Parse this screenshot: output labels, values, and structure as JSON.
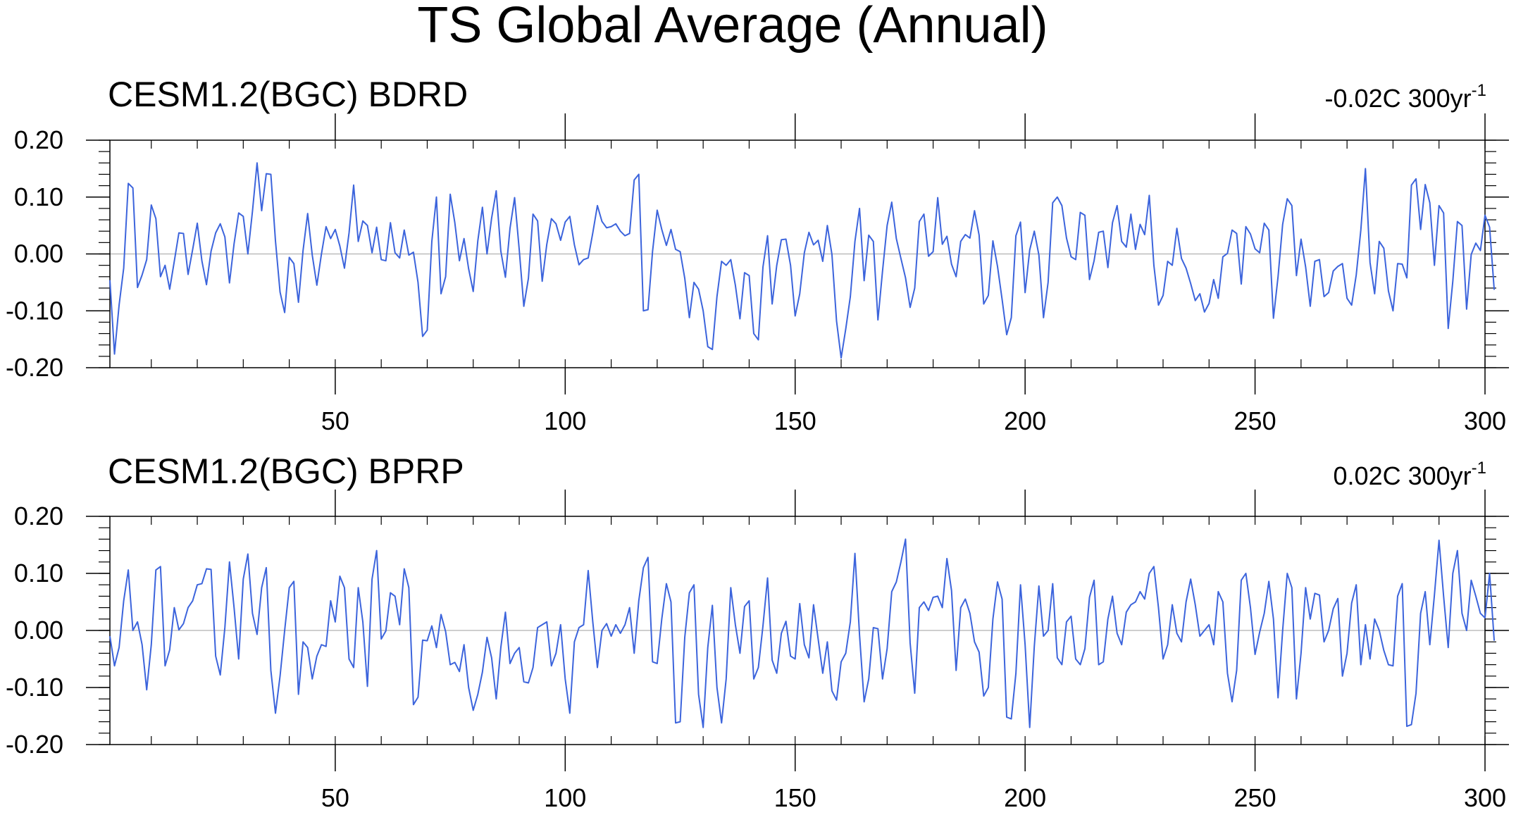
{
  "figure": {
    "title": "TS Global Average (Annual)"
  },
  "chart_data": [
    {
      "type": "line",
      "title": "CESM1.2(BGC) BDRD",
      "trend_label": "-0.02C 300yr",
      "trend_superscript": "-1",
      "xlabel": "",
      "ylabel": "",
      "xlim": [
        1,
        300
      ],
      "ylim": [
        -0.2,
        0.2
      ],
      "xticks": [
        50,
        100,
        150,
        200,
        250,
        300
      ],
      "yticks": [
        0.2,
        0.1,
        0.0,
        -0.1,
        -0.2
      ],
      "ytick_labels": [
        "0.20",
        "0.10",
        "0.00",
        "-0.10",
        "-0.20"
      ],
      "zero_line": true,
      "line_color": "#3c64dc",
      "series": [
        {
          "x_start": 1,
          "x_step": 1,
          "values": [
            -0.046,
            -0.176,
            -0.09,
            -0.025,
            0.124,
            0.116,
            -0.059,
            -0.037,
            -0.01,
            0.086,
            0.062,
            -0.04,
            -0.02,
            -0.062,
            -0.013,
            0.037,
            0.036,
            -0.036,
            0.008,
            0.054,
            -0.012,
            -0.054,
            0.005,
            0.037,
            0.053,
            0.03,
            -0.051,
            0.018,
            0.072,
            0.066,
            0.0,
            0.075,
            0.16,
            0.076,
            0.141,
            0.14,
            0.023,
            -0.067,
            -0.103,
            -0.006,
            -0.017,
            -0.085,
            0.006,
            0.071,
            -0.002,
            -0.055,
            0.0,
            0.048,
            0.027,
            0.043,
            0.014,
            -0.025,
            0.037,
            0.121,
            0.022,
            0.058,
            0.05,
            0.002,
            0.047,
            -0.01,
            -0.012,
            0.055,
            0.002,
            -0.007,
            0.042,
            -0.002,
            0.003,
            -0.05,
            -0.145,
            -0.134,
            0.022,
            0.1,
            -0.07,
            -0.04,
            0.105,
            0.055,
            -0.012,
            0.027,
            -0.026,
            -0.066,
            0.023,
            0.082,
            0.0,
            0.063,
            0.111,
            0.005,
            -0.041,
            0.045,
            0.099,
            0.008,
            -0.092,
            -0.043,
            0.07,
            0.058,
            -0.048,
            0.017,
            0.062,
            0.053,
            0.024,
            0.056,
            0.066,
            0.016,
            -0.019,
            -0.01,
            -0.007,
            0.037,
            0.085,
            0.057,
            0.046,
            0.048,
            0.053,
            0.04,
            0.032,
            0.036,
            0.13,
            0.14,
            -0.1,
            -0.098,
            0.005,
            0.077,
            0.043,
            0.015,
            0.043,
            0.008,
            0.004,
            -0.043,
            -0.112,
            -0.05,
            -0.062,
            -0.1,
            -0.163,
            -0.168,
            -0.075,
            -0.013,
            -0.02,
            -0.01,
            -0.055,
            -0.114,
            -0.033,
            -0.038,
            -0.14,
            -0.151,
            -0.023,
            0.032,
            -0.088,
            -0.02,
            0.025,
            0.026,
            -0.02,
            -0.109,
            -0.07,
            0.002,
            0.038,
            0.016,
            0.024,
            -0.013,
            0.05,
            -0.001,
            -0.118,
            -0.183,
            -0.132,
            -0.075,
            0.022,
            0.08,
            -0.047,
            0.033,
            0.022,
            -0.116,
            -0.03,
            0.05,
            0.091,
            0.027,
            -0.008,
            -0.042,
            -0.094,
            -0.06,
            0.057,
            0.07,
            -0.004,
            0.004,
            0.099,
            0.017,
            0.031,
            -0.018,
            -0.04,
            0.022,
            0.034,
            0.028,
            0.076,
            0.033,
            -0.088,
            -0.073,
            0.023,
            -0.022,
            -0.08,
            -0.142,
            -0.112,
            0.032,
            0.056,
            -0.068,
            0.007,
            0.04,
            -0.002,
            -0.112,
            -0.05,
            0.09,
            0.1,
            0.085,
            0.028,
            -0.005,
            -0.01,
            0.073,
            0.068,
            -0.045,
            -0.012,
            0.038,
            0.04,
            -0.024,
            0.055,
            0.085,
            0.022,
            0.012,
            0.07,
            0.008,
            0.052,
            0.034,
            0.103,
            -0.02,
            -0.09,
            -0.073,
            -0.013,
            -0.02,
            0.045,
            -0.008,
            -0.025,
            -0.052,
            -0.082,
            -0.07,
            -0.102,
            -0.087,
            -0.045,
            -0.078,
            -0.005,
            0.001,
            0.042,
            0.036,
            -0.053,
            0.048,
            0.035,
            0.009,
            0.002,
            0.054,
            0.042,
            -0.113,
            -0.04,
            0.052,
            0.097,
            0.085,
            -0.038,
            0.026,
            -0.023,
            -0.092,
            -0.013,
            -0.01,
            -0.075,
            -0.068,
            -0.03,
            -0.022,
            -0.017,
            -0.078,
            -0.09,
            -0.037,
            0.042,
            0.15,
            -0.015,
            -0.07,
            0.022,
            0.01,
            -0.065,
            -0.1,
            -0.017,
            -0.018,
            -0.042,
            0.121,
            0.132,
            0.043,
            0.122,
            0.09,
            -0.02,
            0.085,
            0.072,
            -0.131,
            -0.048,
            0.057,
            0.05,
            -0.097,
            -0.001,
            0.019,
            0.006,
            0.068,
            0.047,
            -0.063
          ]
        }
      ]
    },
    {
      "type": "line",
      "title": "CESM1.2(BGC) BPRP",
      "trend_label": "0.02C 300yr",
      "trend_superscript": "-1",
      "xlabel": "",
      "ylabel": "",
      "xlim": [
        1,
        300
      ],
      "ylim": [
        -0.2,
        0.2
      ],
      "xticks": [
        50,
        100,
        150,
        200,
        250,
        300
      ],
      "yticks": [
        0.2,
        0.1,
        0.0,
        -0.1,
        -0.2
      ],
      "ytick_labels": [
        "0.20",
        "0.10",
        "0.00",
        "-0.10",
        "-0.20"
      ],
      "zero_line": true,
      "line_color": "#3c64dc",
      "series": [
        {
          "x_start": 1,
          "x_step": 1,
          "values": [
            -0.01,
            -0.062,
            -0.03,
            0.052,
            0.106,
            0.0,
            0.015,
            -0.025,
            -0.104,
            -0.025,
            0.106,
            0.112,
            -0.062,
            -0.034,
            0.04,
            0.001,
            0.012,
            0.04,
            0.052,
            0.08,
            0.082,
            0.108,
            0.107,
            -0.045,
            -0.078,
            0.005,
            0.12,
            0.04,
            -0.05,
            0.09,
            0.134,
            0.03,
            -0.007,
            0.075,
            0.11,
            -0.07,
            -0.145,
            -0.08,
            0.0,
            0.075,
            0.086,
            -0.112,
            -0.02,
            -0.03,
            -0.085,
            -0.045,
            -0.025,
            -0.028,
            0.052,
            0.015,
            0.095,
            0.075,
            -0.05,
            -0.065,
            0.075,
            0.015,
            -0.098,
            0.09,
            0.14,
            -0.015,
            -0.001,
            0.066,
            0.06,
            0.01,
            0.108,
            0.075,
            -0.13,
            -0.117,
            -0.017,
            -0.018,
            0.008,
            -0.03,
            0.028,
            -0.002,
            -0.06,
            -0.056,
            -0.072,
            -0.025,
            -0.1,
            -0.14,
            -0.112,
            -0.073,
            -0.012,
            -0.048,
            -0.12,
            -0.03,
            0.032,
            -0.058,
            -0.04,
            -0.03,
            -0.09,
            -0.092,
            -0.065,
            0.005,
            0.01,
            0.015,
            -0.062,
            -0.04,
            0.01,
            -0.085,
            -0.145,
            -0.02,
            0.005,
            0.01,
            0.105,
            0.015,
            -0.065,
            0.0,
            0.012,
            -0.01,
            0.01,
            -0.005,
            0.01,
            0.04,
            -0.04,
            0.052,
            0.11,
            0.128,
            -0.055,
            -0.058,
            0.02,
            0.082,
            0.05,
            -0.162,
            -0.16,
            -0.012,
            0.066,
            0.08,
            -0.112,
            -0.17,
            -0.03,
            0.044,
            -0.1,
            -0.162,
            -0.085,
            0.075,
            0.01,
            -0.04,
            0.042,
            0.052,
            -0.085,
            -0.065,
            0.008,
            0.092,
            -0.052,
            -0.075,
            -0.005,
            0.016,
            -0.045,
            -0.05,
            0.047,
            -0.025,
            -0.048,
            0.045,
            -0.015,
            -0.075,
            -0.02,
            -0.106,
            -0.122,
            -0.055,
            -0.04,
            0.015,
            0.135,
            -0.008,
            -0.125,
            -0.085,
            0.005,
            0.003,
            -0.085,
            -0.032,
            0.068,
            0.085,
            0.12,
            0.16,
            -0.022,
            -0.11,
            0.04,
            0.05,
            0.035,
            0.058,
            0.06,
            0.04,
            0.126,
            0.07,
            -0.07,
            0.04,
            0.055,
            0.03,
            -0.02,
            -0.038,
            -0.115,
            -0.1,
            0.02,
            0.085,
            0.055,
            -0.152,
            -0.155,
            -0.075,
            0.08,
            -0.025,
            -0.17,
            -0.028,
            0.078,
            -0.01,
            0.0,
            0.082,
            -0.048,
            -0.06,
            0.015,
            0.025,
            -0.05,
            -0.06,
            -0.032,
            0.058,
            0.088,
            -0.06,
            -0.055,
            0.02,
            0.06,
            -0.005,
            -0.025,
            0.032,
            0.045,
            0.05,
            0.068,
            0.055,
            0.1,
            0.112,
            0.04,
            -0.05,
            -0.025,
            0.045,
            -0.005,
            -0.02,
            0.05,
            0.09,
            0.045,
            -0.01,
            0.0,
            0.01,
            -0.025,
            0.068,
            0.05,
            -0.075,
            -0.125,
            -0.07,
            0.088,
            0.1,
            0.04,
            -0.042,
            -0.003,
            0.03,
            0.086,
            0.02,
            -0.118,
            0.0,
            0.1,
            0.075,
            -0.12,
            -0.04,
            0.075,
            0.02,
            0.065,
            0.062,
            -0.02,
            0.0,
            0.038,
            0.056,
            -0.08,
            -0.04,
            0.048,
            0.08,
            -0.06,
            0.01,
            -0.05,
            0.02,
            0.0,
            -0.035,
            -0.06,
            -0.062,
            0.06,
            0.082,
            -0.168,
            -0.165,
            -0.11,
            0.03,
            0.068,
            -0.025,
            0.062,
            0.158,
            0.06,
            -0.03,
            0.1,
            0.14,
            0.03,
            0.0,
            0.088,
            0.06,
            0.03,
            0.022,
            0.1,
            -0.018
          ]
        }
      ]
    }
  ]
}
